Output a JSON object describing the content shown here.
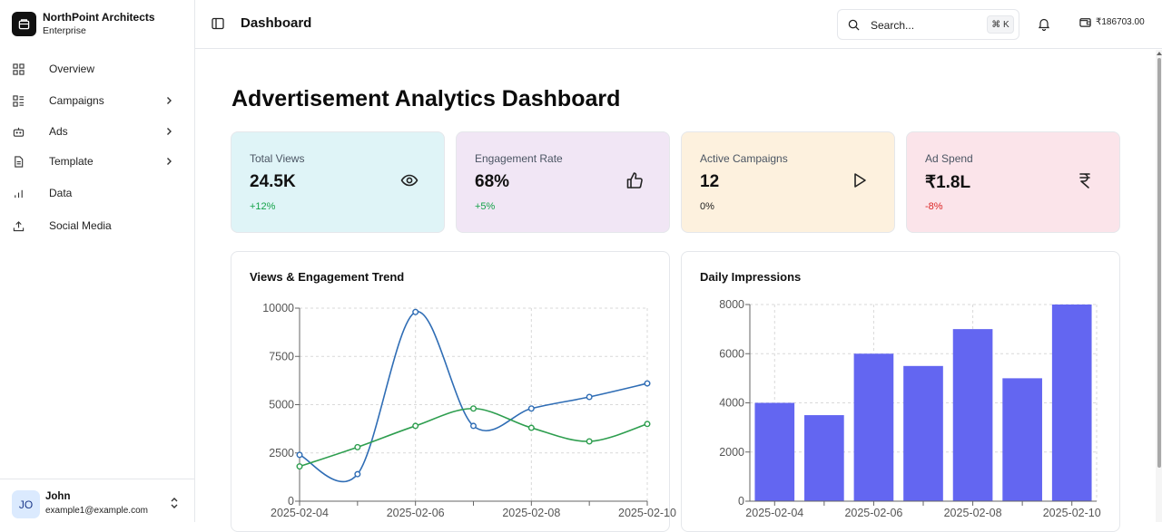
{
  "brand": {
    "name": "NorthPoint Architects",
    "subtitle": "Enterprise"
  },
  "nav": [
    {
      "label": "Overview",
      "icon": "grid-icon",
      "chevron": false
    },
    {
      "label": "Campaigns",
      "icon": "list-grid-icon",
      "chevron": true
    },
    {
      "label": "Ads",
      "icon": "bot-icon",
      "chevron": true
    },
    {
      "label": "Template",
      "icon": "document-icon",
      "chevron": true
    },
    {
      "label": "Data",
      "icon": "bar-chart-icon",
      "chevron": false
    },
    {
      "label": "Social Media",
      "icon": "upload-icon",
      "chevron": false
    }
  ],
  "user": {
    "initials": "JO",
    "name": "John",
    "email": "example1@example.com"
  },
  "header": {
    "title": "Dashboard",
    "search_placeholder": "Search...",
    "shortcut": "⌘ K",
    "wallet_amount": "₹186703.00"
  },
  "main": {
    "title": "Advertisement Analytics Dashboard"
  },
  "stats": [
    {
      "label": "Total Views",
      "value": "24.5K",
      "change": "+12%",
      "icon": "eye-icon",
      "bg": "#dff4f7",
      "change_color": "#16a34a"
    },
    {
      "label": "Engagement Rate",
      "value": "68%",
      "change": "+5%",
      "icon": "thumbs-up-icon",
      "bg": "#f1e6f5",
      "change_color": "#16a34a"
    },
    {
      "label": "Active Campaigns",
      "value": "12",
      "change": "0%",
      "icon": "play-icon",
      "bg": "#fdf1de",
      "change_color": "#222222"
    },
    {
      "label": "Ad Spend",
      "value": "₹1.8L",
      "change": "-8%",
      "icon": "rupee-icon",
      "bg": "#fbe4ea",
      "change_color": "#dc2626"
    }
  ],
  "chart_data": [
    {
      "type": "line",
      "title": "Views & Engagement Trend",
      "x": [
        "2025-02-04",
        "2025-02-05",
        "2025-02-06",
        "2025-02-07",
        "2025-02-08",
        "2025-02-09",
        "2025-02-10"
      ],
      "series": [
        {
          "values": [
            2400,
            1400,
            9800,
            3900,
            4800,
            5400,
            6100
          ],
          "color": "#2f6db5"
        },
        {
          "values": [
            1800,
            2800,
            3900,
            4800,
            3800,
            3100,
            4000
          ],
          "color": "#2e9e4f"
        }
      ],
      "xticks": [
        "2025-02-04",
        "2025-02-06",
        "2025-02-08",
        "2025-02-10"
      ],
      "yticks": [
        0,
        2500,
        5000,
        7500,
        10000
      ],
      "ylim": [
        0,
        10000
      ],
      "grid": true
    },
    {
      "type": "bar",
      "title": "Daily Impressions",
      "categories": [
        "2025-02-04",
        "2025-02-05",
        "2025-02-06",
        "2025-02-07",
        "2025-02-08",
        "2025-02-09",
        "2025-02-10"
      ],
      "values": [
        4000,
        3500,
        6000,
        5500,
        7000,
        5000,
        8000
      ],
      "color": "#6366f1",
      "xticks": [
        "2025-02-04",
        "2025-02-06",
        "2025-02-08",
        "2025-02-10"
      ],
      "yticks": [
        0,
        2000,
        4000,
        6000,
        8000
      ],
      "ylim": [
        0,
        8000
      ],
      "grid": true
    }
  ]
}
